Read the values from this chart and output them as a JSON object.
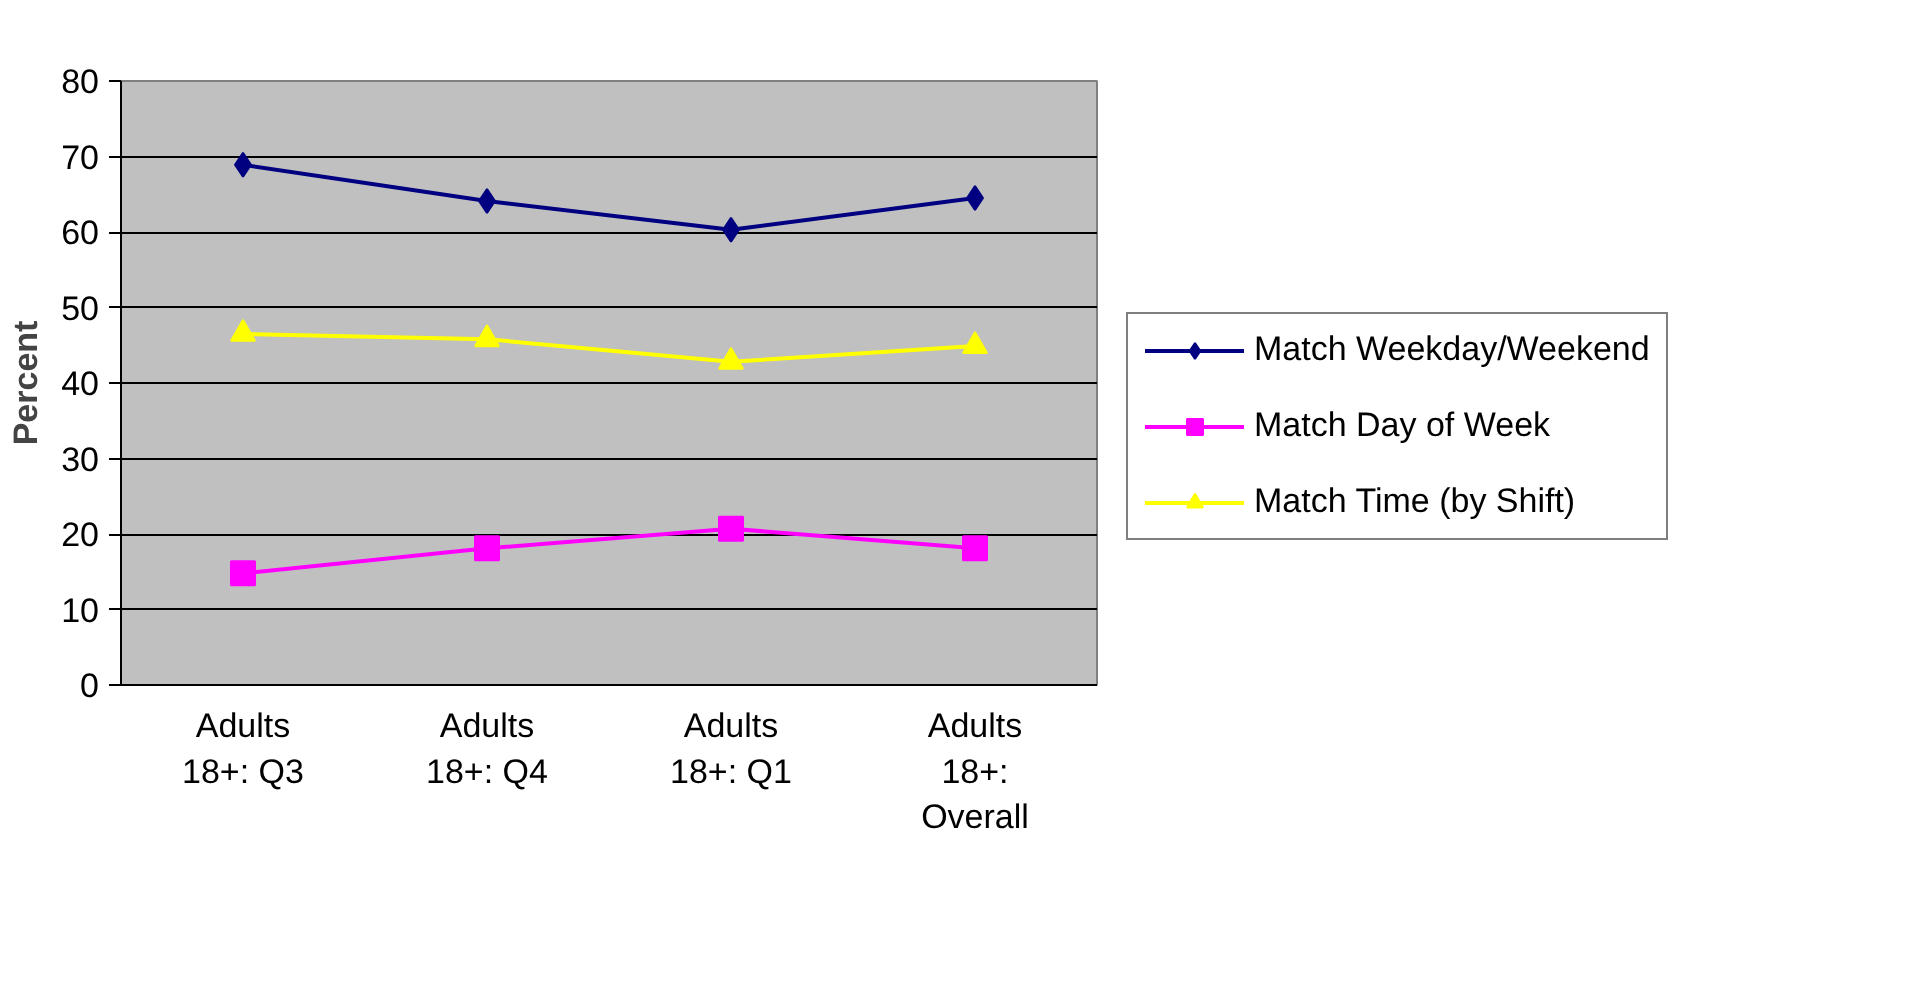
{
  "chart_data": {
    "type": "line",
    "ylabel": "Percent",
    "categories": [
      "Adults 18+: Q3",
      "Adults 18+: Q4",
      "Adults 18+: Q1",
      "Adults 18+: Overall"
    ],
    "ylim": [
      0,
      80
    ],
    "yticks": [
      0,
      10,
      20,
      30,
      40,
      50,
      60,
      70,
      80
    ],
    "grid": "y",
    "legend": "right",
    "series": [
      {
        "name": "Match Weekday/Weekend",
        "color": "#000080",
        "marker": "diamond",
        "values": [
          68.9,
          64.1,
          60.3,
          64.5
        ]
      },
      {
        "name": "Match Day of Week",
        "color": "#ff00ff",
        "marker": "square",
        "values": [
          14.8,
          18.1,
          20.7,
          18.1
        ]
      },
      {
        "name": "Match Time (by Shift)",
        "color": "#ffff00",
        "marker": "triangle",
        "values": [
          46.5,
          45.8,
          42.8,
          44.9
        ]
      }
    ]
  }
}
